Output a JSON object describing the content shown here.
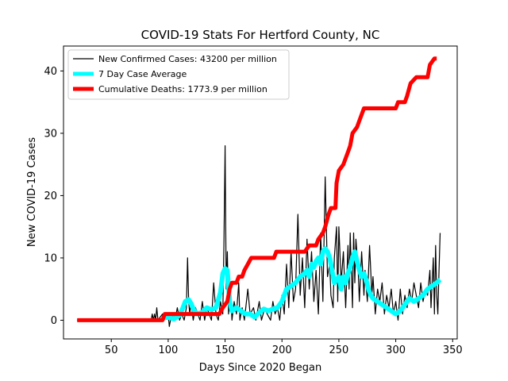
{
  "chart_data": {
    "type": "line",
    "title": "COVID-19 Stats For Hertford County, NC",
    "xlabel": "Days Since 2020 Began",
    "ylabel": "New COVID-19 Cases",
    "xlim": [
      8,
      354
    ],
    "ylim": [
      -3,
      44
    ],
    "x_ticks": [
      50,
      100,
      150,
      200,
      250,
      300,
      350
    ],
    "y_ticks": [
      0,
      10,
      20,
      30,
      40
    ],
    "grid": false,
    "legend_position": "top-left",
    "series": [
      {
        "name": "New Confirmed Cases: 43200 per million",
        "color": "#000000",
        "points": [
          [
            20,
            0
          ],
          [
            85,
            0
          ],
          [
            86,
            1
          ],
          [
            87,
            0
          ],
          [
            88,
            1
          ],
          [
            89,
            0
          ],
          [
            90,
            2
          ],
          [
            91,
            0
          ],
          [
            95,
            1
          ],
          [
            96,
            0
          ],
          [
            100,
            1
          ],
          [
            101,
            -1
          ],
          [
            102,
            0
          ],
          [
            105,
            1
          ],
          [
            106,
            0
          ],
          [
            108,
            2
          ],
          [
            110,
            0
          ],
          [
            112,
            1
          ],
          [
            114,
            0
          ],
          [
            116,
            2
          ],
          [
            117,
            10
          ],
          [
            118,
            3
          ],
          [
            119,
            1
          ],
          [
            120,
            3
          ],
          [
            122,
            0
          ],
          [
            124,
            2
          ],
          [
            126,
            1
          ],
          [
            128,
            0
          ],
          [
            130,
            3
          ],
          [
            132,
            0
          ],
          [
            134,
            2
          ],
          [
            136,
            1
          ],
          [
            138,
            0
          ],
          [
            140,
            6
          ],
          [
            142,
            1
          ],
          [
            144,
            0
          ],
          [
            146,
            3
          ],
          [
            148,
            1
          ],
          [
            149,
            12
          ],
          [
            150,
            28
          ],
          [
            151,
            5
          ],
          [
            152,
            11
          ],
          [
            153,
            1
          ],
          [
            155,
            5
          ],
          [
            156,
            0
          ],
          [
            158,
            3
          ],
          [
            160,
            1
          ],
          [
            162,
            6
          ],
          [
            163,
            0
          ],
          [
            165,
            2
          ],
          [
            167,
            0
          ],
          [
            170,
            5
          ],
          [
            172,
            1
          ],
          [
            175,
            2
          ],
          [
            177,
            0
          ],
          [
            180,
            3
          ],
          [
            182,
            0
          ],
          [
            185,
            2
          ],
          [
            187,
            1
          ],
          [
            190,
            0
          ],
          [
            192,
            3
          ],
          [
            194,
            1
          ],
          [
            196,
            2
          ],
          [
            198,
            0
          ],
          [
            200,
            4
          ],
          [
            202,
            1
          ],
          [
            204,
            9
          ],
          [
            206,
            2
          ],
          [
            208,
            11
          ],
          [
            210,
            3
          ],
          [
            212,
            5
          ],
          [
            214,
            17
          ],
          [
            216,
            4
          ],
          [
            218,
            10
          ],
          [
            220,
            2
          ],
          [
            222,
            13
          ],
          [
            224,
            5
          ],
          [
            226,
            11
          ],
          [
            228,
            3
          ],
          [
            230,
            8
          ],
          [
            232,
            1
          ],
          [
            234,
            14
          ],
          [
            236,
            3
          ],
          [
            238,
            23
          ],
          [
            240,
            7
          ],
          [
            242,
            9
          ],
          [
            243,
            4
          ],
          [
            245,
            2
          ],
          [
            246,
            10
          ],
          [
            248,
            15
          ],
          [
            249,
            3
          ],
          [
            250,
            15
          ],
          [
            252,
            6
          ],
          [
            254,
            11
          ],
          [
            256,
            2
          ],
          [
            258,
            12
          ],
          [
            259,
            5
          ],
          [
            260,
            14
          ],
          [
            262,
            2
          ],
          [
            263,
            14
          ],
          [
            264,
            6
          ],
          [
            265,
            13
          ],
          [
            267,
            8
          ],
          [
            268,
            3
          ],
          [
            270,
            11
          ],
          [
            272,
            4
          ],
          [
            273,
            8
          ],
          [
            275,
            3
          ],
          [
            277,
            12
          ],
          [
            279,
            4
          ],
          [
            280,
            7
          ],
          [
            282,
            1
          ],
          [
            284,
            5
          ],
          [
            286,
            3
          ],
          [
            288,
            6
          ],
          [
            290,
            1
          ],
          [
            292,
            4
          ],
          [
            294,
            2
          ],
          [
            296,
            5
          ],
          [
            298,
            1
          ],
          [
            300,
            3
          ],
          [
            302,
            0
          ],
          [
            304,
            5
          ],
          [
            306,
            1
          ],
          [
            308,
            4
          ],
          [
            310,
            2
          ],
          [
            312,
            5
          ],
          [
            314,
            3
          ],
          [
            316,
            6
          ],
          [
            318,
            4
          ],
          [
            320,
            2
          ],
          [
            322,
            6
          ],
          [
            324,
            3
          ],
          [
            326,
            5
          ],
          [
            328,
            4
          ],
          [
            330,
            8
          ],
          [
            331,
            2
          ],
          [
            333,
            10
          ],
          [
            334,
            1
          ],
          [
            335,
            12
          ],
          [
            336,
            4
          ],
          [
            337,
            1
          ],
          [
            338,
            8
          ],
          [
            339,
            14
          ]
        ]
      },
      {
        "name": "7 Day Case Average",
        "color": "#00ffff",
        "points": [
          [
            95,
            0.3
          ],
          [
            100,
            0.5
          ],
          [
            105,
            0.2
          ],
          [
            110,
            0.8
          ],
          [
            113,
            2
          ],
          [
            115,
            3
          ],
          [
            118,
            3.3
          ],
          [
            120,
            2.7
          ],
          [
            123,
            1.5
          ],
          [
            126,
            1
          ],
          [
            130,
            1.3
          ],
          [
            134,
            2
          ],
          [
            138,
            1.7
          ],
          [
            142,
            2
          ],
          [
            146,
            4.5
          ],
          [
            148,
            7.5
          ],
          [
            150,
            8.3
          ],
          [
            152,
            8
          ],
          [
            154,
            3
          ],
          [
            156,
            1.5
          ],
          [
            160,
            2
          ],
          [
            164,
            1.5
          ],
          [
            168,
            1
          ],
          [
            172,
            1
          ],
          [
            176,
            0.5
          ],
          [
            180,
            1.2
          ],
          [
            184,
            1.8
          ],
          [
            188,
            1.5
          ],
          [
            192,
            1.8
          ],
          [
            196,
            2
          ],
          [
            200,
            3
          ],
          [
            204,
            5
          ],
          [
            208,
            5.5
          ],
          [
            212,
            6
          ],
          [
            216,
            7
          ],
          [
            220,
            7.5
          ],
          [
            222,
            8
          ],
          [
            224,
            7
          ],
          [
            226,
            9
          ],
          [
            228,
            8.5
          ],
          [
            230,
            9.5
          ],
          [
            232,
            10
          ],
          [
            234,
            9
          ],
          [
            236,
            11
          ],
          [
            238,
            11.5
          ],
          [
            240,
            11
          ],
          [
            242,
            10
          ],
          [
            244,
            8
          ],
          [
            246,
            6
          ],
          [
            248,
            6.5
          ],
          [
            250,
            7
          ],
          [
            252,
            5
          ],
          [
            254,
            7
          ],
          [
            256,
            6
          ],
          [
            258,
            7.5
          ],
          [
            260,
            8.5
          ],
          [
            262,
            10
          ],
          [
            264,
            11
          ],
          [
            266,
            9.5
          ],
          [
            268,
            8
          ],
          [
            270,
            7
          ],
          [
            272,
            7.5
          ],
          [
            274,
            6.5
          ],
          [
            276,
            5
          ],
          [
            278,
            4
          ],
          [
            280,
            3.5
          ],
          [
            284,
            3
          ],
          [
            288,
            2.5
          ],
          [
            292,
            2
          ],
          [
            296,
            1.5
          ],
          [
            300,
            1
          ],
          [
            304,
            1.5
          ],
          [
            308,
            2.5
          ],
          [
            312,
            3.5
          ],
          [
            316,
            3
          ],
          [
            320,
            3.5
          ],
          [
            324,
            4
          ],
          [
            328,
            5
          ],
          [
            332,
            5.5
          ],
          [
            336,
            6
          ],
          [
            339,
            6.5
          ]
        ]
      },
      {
        "name": "Cumulative Deaths: 1773.9 per million",
        "color": "#ff0000",
        "points": [
          [
            20,
            0
          ],
          [
            95,
            0
          ],
          [
            97,
            1
          ],
          [
            145,
            1
          ],
          [
            148,
            2
          ],
          [
            152,
            3
          ],
          [
            154,
            5
          ],
          [
            156,
            6
          ],
          [
            160,
            6
          ],
          [
            162,
            7
          ],
          [
            165,
            7
          ],
          [
            167,
            8
          ],
          [
            170,
            9
          ],
          [
            173,
            10
          ],
          [
            193,
            10
          ],
          [
            195,
            11
          ],
          [
            218,
            11
          ],
          [
            220,
            11
          ],
          [
            224,
            12
          ],
          [
            230,
            12
          ],
          [
            232,
            13
          ],
          [
            236,
            14
          ],
          [
            238,
            15
          ],
          [
            241,
            17
          ],
          [
            243,
            18
          ],
          [
            247,
            18
          ],
          [
            248,
            22
          ],
          [
            250,
            24
          ],
          [
            254,
            25
          ],
          [
            256,
            26
          ],
          [
            258,
            27
          ],
          [
            260,
            28
          ],
          [
            262,
            30
          ],
          [
            266,
            31
          ],
          [
            268,
            32
          ],
          [
            270,
            33
          ],
          [
            272,
            34
          ],
          [
            300,
            34
          ],
          [
            302,
            35
          ],
          [
            308,
            35
          ],
          [
            310,
            36
          ],
          [
            313,
            38
          ],
          [
            318,
            39
          ],
          [
            328,
            39
          ],
          [
            330,
            41
          ],
          [
            334,
            42
          ],
          [
            336,
            42
          ]
        ]
      }
    ]
  }
}
